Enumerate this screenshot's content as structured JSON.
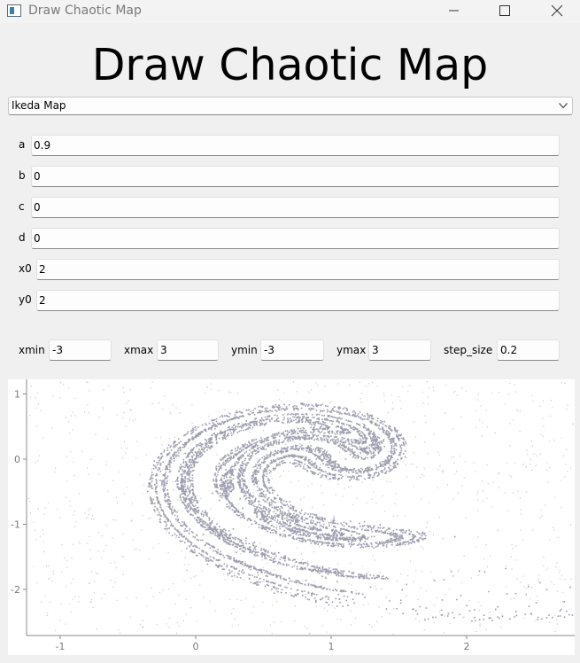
{
  "window": {
    "title": "Draw Chaotic Map"
  },
  "heading": "Draw Chaotic Map",
  "map_selector": {
    "selected": "Ikeda Map"
  },
  "params": [
    {
      "label": "a",
      "value": "0.9"
    },
    {
      "label": "b",
      "value": "0"
    },
    {
      "label": "c",
      "value": "0"
    },
    {
      "label": "d",
      "value": "0"
    },
    {
      "label": "x0",
      "value": "2"
    },
    {
      "label": "y0",
      "value": "2"
    }
  ],
  "range": {
    "xmin_label": "xmin",
    "xmin": "-3",
    "xmax_label": "xmax",
    "xmax": "3",
    "ymin_label": "ymin",
    "ymin": "-3",
    "ymax_label": "ymax",
    "ymax": "3",
    "step_label": "step_size",
    "step": "0.2"
  },
  "chart_data": {
    "type": "scatter",
    "title": "",
    "xlabel": "",
    "ylabel": "",
    "x_ticks": [
      "-1",
      "0",
      "1",
      "2"
    ],
    "y_ticks": [
      "1",
      "0",
      "-1",
      "-2"
    ],
    "xlim": [
      -1.25,
      2.8
    ],
    "ylim": [
      -2.7,
      1.1
    ],
    "grid": false,
    "point_color": "#9e9eb0",
    "series": [
      {
        "map": "Ikeda Map",
        "u": 0.9,
        "x0": 2,
        "y0": 2
      }
    ]
  },
  "colors": {
    "window_bg": "#f0f0f0",
    "plot_bg": "#ffffff",
    "points": "#9e9eb0"
  }
}
